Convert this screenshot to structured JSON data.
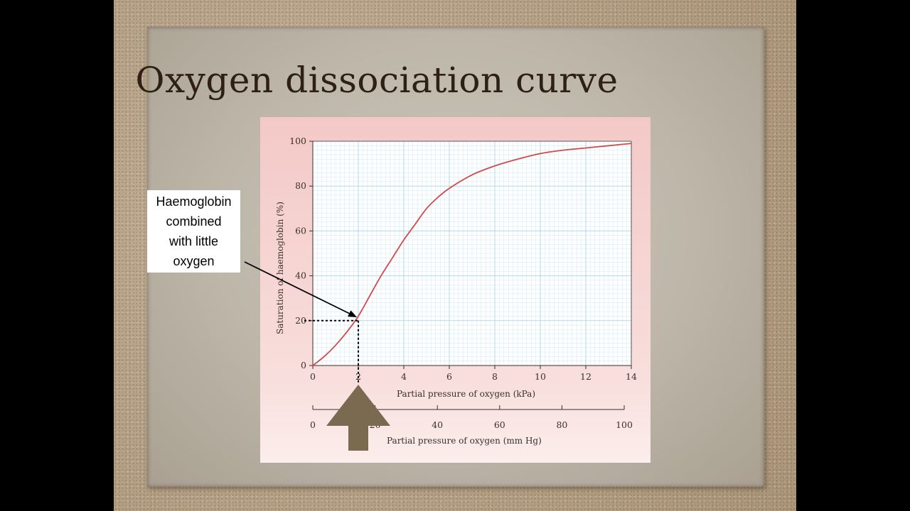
{
  "slide": {
    "title": "Oxygen dissociation curve",
    "callout_lines": [
      "Haemoglobin",
      "combined",
      "with little",
      "oxygen"
    ]
  },
  "colors": {
    "curve": "#d04a4a",
    "grid": "#a9d6ee",
    "panel": "#f6d2d0",
    "arrow": "#7a6a50"
  },
  "chart_data": {
    "type": "line",
    "x": [
      0,
      0.5,
      1,
      1.5,
      2,
      2.5,
      3,
      3.5,
      4,
      4.5,
      5,
      5.5,
      6,
      7,
      8,
      9,
      10,
      11,
      12,
      13,
      14
    ],
    "series": [
      {
        "values": [
          0,
          4,
          9,
          15,
          22,
          31,
          40,
          48,
          56,
          63,
          70,
          75,
          79,
          85,
          89,
          92,
          94.5,
          96,
          97,
          98,
          99
        ]
      }
    ],
    "xlabel": "Partial pressure of oxygen (kPa)",
    "ylabel": "Saturation of haemoglobin (%)",
    "xlim": [
      0,
      14
    ],
    "ylim": [
      0,
      100
    ],
    "xticks": [
      "0",
      "2",
      "4",
      "6",
      "8",
      "10",
      "12",
      "14"
    ],
    "yticks": [
      "0",
      "20",
      "40",
      "60",
      "80",
      "100"
    ],
    "secondary_axis": {
      "label": "Partial pressure of oxygen (mm Hg)",
      "ticks": [
        "0",
        "20",
        "40",
        "60",
        "80",
        "100"
      ]
    },
    "annotation": {
      "x": 2,
      "y": 20
    },
    "grid": true
  }
}
